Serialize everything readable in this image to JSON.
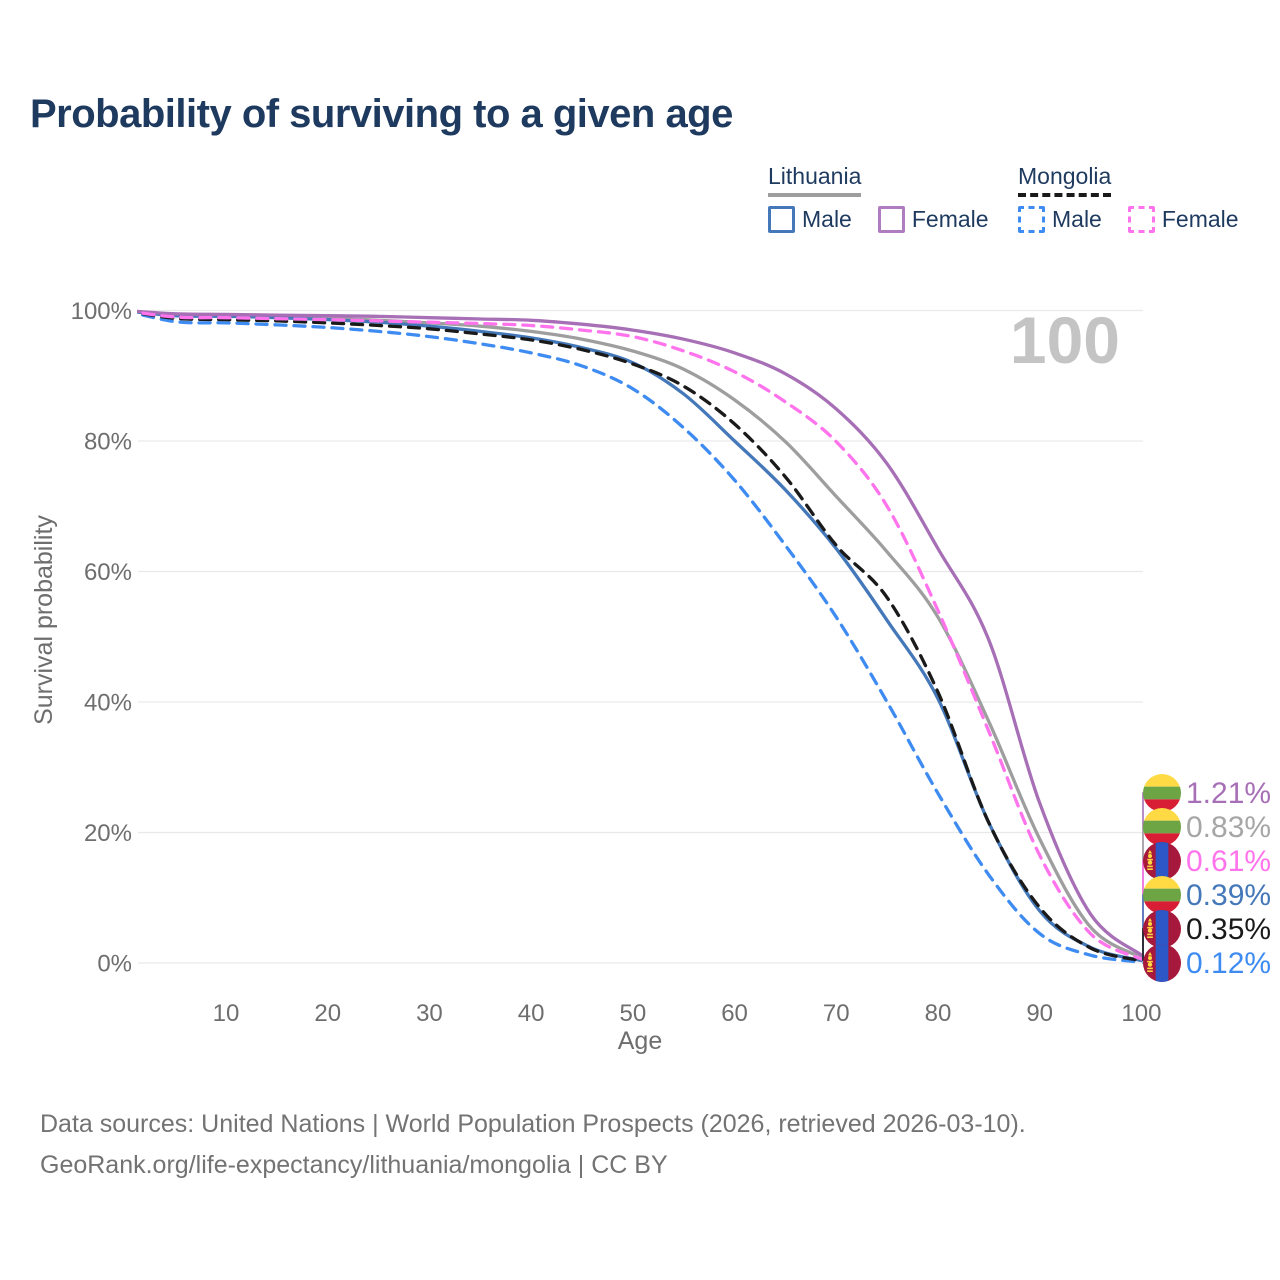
{
  "title": "Probability of surviving to a given age",
  "watermark": "100",
  "legend": {
    "groups": [
      {
        "country": "Lithuania",
        "line_style": "solid",
        "underline_color": "#9E9E9E",
        "items": [
          {
            "label": "Male",
            "color": "#4478B9",
            "dash": false
          },
          {
            "label": "Female",
            "color": "#B07CC0",
            "dash": false
          }
        ]
      },
      {
        "country": "Mongolia",
        "line_style": "dashed",
        "underline_color": "#1A1A1A",
        "items": [
          {
            "label": "Male",
            "color": "#3E8BF2",
            "dash": true
          },
          {
            "label": "Female",
            "color": "#FF74EC",
            "dash": true
          }
        ]
      }
    ]
  },
  "axes": {
    "x": {
      "label": "Age",
      "ticks": [
        10,
        20,
        30,
        40,
        50,
        60,
        70,
        80,
        90,
        100
      ],
      "min": 0,
      "max": 100
    },
    "y": {
      "label": "Survival probability",
      "ticks": [
        "0%",
        "20%",
        "40%",
        "60%",
        "80%",
        "100%"
      ],
      "tick_values": [
        0,
        20,
        40,
        60,
        80,
        100
      ],
      "min": 0,
      "max": 100,
      "grid": true
    }
  },
  "chart_data": {
    "type": "line",
    "title": "Probability of surviving to a given age",
    "xlabel": "Age",
    "ylabel": "Survival probability",
    "x_ages": [
      0,
      5,
      10,
      15,
      20,
      25,
      30,
      35,
      40,
      45,
      50,
      55,
      60,
      65,
      70,
      75,
      80,
      85,
      90,
      95,
      100
    ],
    "series": [
      {
        "id": "lt_female",
        "name": "Lithuania Female",
        "color": "#A76FB5",
        "dash": "solid",
        "values": [
          100,
          99.5,
          99.4,
          99.3,
          99.2,
          99.1,
          98.9,
          98.7,
          98.5,
          97.9,
          97.0,
          95.6,
          93.5,
          90.3,
          84.9,
          76.5,
          63.5,
          49.5,
          24.5,
          7.5,
          1.21
        ],
        "end_label": "1.21%"
      },
      {
        "id": "lt_total",
        "name": "Lithuania",
        "color": "#9E9E9E",
        "dash": "solid",
        "values": [
          100,
          99.3,
          99.2,
          99.0,
          98.8,
          98.5,
          98.1,
          97.6,
          96.8,
          95.6,
          93.8,
          91.0,
          86.3,
          79.9,
          71.5,
          63.0,
          53.0,
          37.0,
          19.0,
          5.5,
          0.83
        ],
        "end_label": "0.83%"
      },
      {
        "id": "mn_female",
        "name": "Mongolia Female",
        "color": "#FF74EC",
        "dash": "dashed",
        "values": [
          100,
          99.0,
          98.9,
          98.75,
          98.6,
          98.4,
          98.2,
          98.0,
          97.7,
          97.0,
          96.0,
          93.8,
          90.6,
          86.0,
          79.9,
          70.0,
          54.0,
          35.5,
          16.5,
          4.5,
          0.61
        ],
        "end_label": "0.61%"
      },
      {
        "id": "lt_male",
        "name": "Lithuania Male",
        "color": "#4478B9",
        "dash": "solid",
        "values": [
          100,
          99.2,
          99.1,
          98.9,
          98.6,
          98.2,
          97.6,
          96.8,
          95.8,
          94.3,
          92.0,
          87.2,
          80.0,
          72.5,
          63.5,
          52.5,
          40.5,
          21.5,
          8.0,
          2.4,
          0.39
        ],
        "end_label": "0.39%"
      },
      {
        "id": "mn_total",
        "name": "Mongolia",
        "color": "#1A1A1A",
        "dash": "dashed",
        "values": [
          100,
          98.8,
          98.6,
          98.4,
          98.1,
          97.7,
          97.2,
          96.4,
          95.5,
          94.0,
          91.8,
          88.4,
          82.6,
          74.5,
          64.0,
          56.0,
          41.5,
          21.5,
          8.5,
          2.3,
          0.35
        ],
        "end_label": "0.35%"
      },
      {
        "id": "mn_male",
        "name": "Mongolia Male",
        "color": "#3E8BF2",
        "dash": "dashed",
        "values": [
          100,
          98.3,
          98.1,
          97.8,
          97.4,
          96.8,
          96.0,
          94.9,
          93.5,
          91.5,
          88.0,
          82.0,
          74.0,
          64.0,
          53.0,
          40.0,
          26.0,
          13.5,
          4.5,
          1.2,
          0.12
        ],
        "end_label": "0.12%"
      }
    ],
    "end_labels": [
      {
        "value": "1.21%",
        "flag": "lithuania",
        "color": "#A76FB5"
      },
      {
        "value": "0.83%",
        "flag": "lithuania",
        "color": "#A6A6A6"
      },
      {
        "value": "0.61%",
        "flag": "mongolia",
        "color": "#FF74EC"
      },
      {
        "value": "0.39%",
        "flag": "lithuania",
        "color": "#4478B9"
      },
      {
        "value": "0.35%",
        "flag": "mongolia",
        "color": "#1A1A1A"
      },
      {
        "value": "0.12%",
        "flag": "mongolia",
        "color": "#3E8BF2"
      }
    ],
    "legend_position": "top-right",
    "grid": "horizontal-only"
  },
  "flags": {
    "lithuania": {
      "yellow": "#FFDA44",
      "green": "#6DA544",
      "red": "#D81E34"
    },
    "mongolia": {
      "red": "#A6183C",
      "blue": "#2D57C7",
      "emblem": "#FFD940"
    }
  },
  "footer": {
    "line1": "Data sources: United Nations | World Population Prospects (2026, retrieved 2026-03-10).",
    "line2": "GeoRank.org/life-expectancy/lithuania/mongolia | CC BY"
  }
}
